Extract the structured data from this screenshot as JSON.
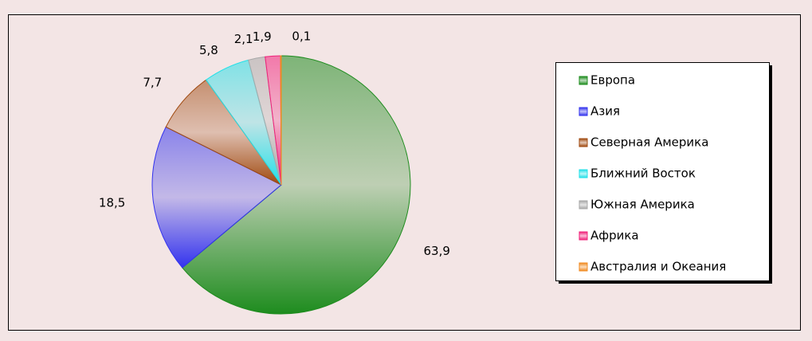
{
  "chart_data": {
    "type": "pie",
    "categories": [
      "Европа",
      "Азия",
      "Северная Америка",
      "Ближний Восток",
      "Южная Америка",
      "Африка",
      "Австралия и Океания"
    ],
    "values": [
      63.9,
      18.5,
      7.7,
      5.8,
      2.1,
      1.9,
      0.1
    ],
    "value_labels": [
      "63,9",
      "18,5",
      "7,7",
      "5,8",
      "2,1",
      "1,9",
      "0,1"
    ],
    "colors": [
      "#1e8c1e",
      "#3333ee",
      "#a04a10",
      "#22e0e8",
      "#a8a8a8",
      "#f0207a",
      "#f08a20"
    ],
    "legend": "right"
  }
}
